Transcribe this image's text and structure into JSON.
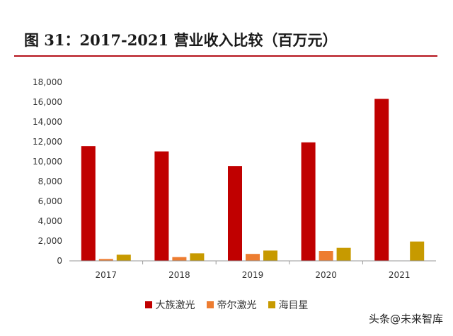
{
  "title": "图  31：2017-2021 营业收入比较（百万元）",
  "watermark": "头条@未来智库",
  "colors": {
    "title_rule": "#b5121b",
    "axis": "#999999"
  },
  "chart_data": {
    "type": "bar",
    "categories": [
      "2017",
      "2018",
      "2019",
      "2020",
      "2021"
    ],
    "ylim": [
      0,
      18000
    ],
    "yticks": [
      "0",
      "2,000",
      "4,000",
      "6,000",
      "8,000",
      "10,000",
      "12,000",
      "14,000",
      "16,000",
      "18,000"
    ],
    "grid": false,
    "legend_position": "bottom",
    "series": [
      {
        "name": "大族激光",
        "color": "#c00000",
        "values": [
          11560,
          11030,
          9560,
          11940,
          16320
        ]
      },
      {
        "name": "帝尔激光",
        "color": "#ed7d31",
        "values": [
          190,
          380,
          700,
          1000,
          null
        ]
      },
      {
        "name": "海目星",
        "color": "#c79a00",
        "values": [
          620,
          760,
          1040,
          1310,
          1950
        ]
      }
    ]
  }
}
